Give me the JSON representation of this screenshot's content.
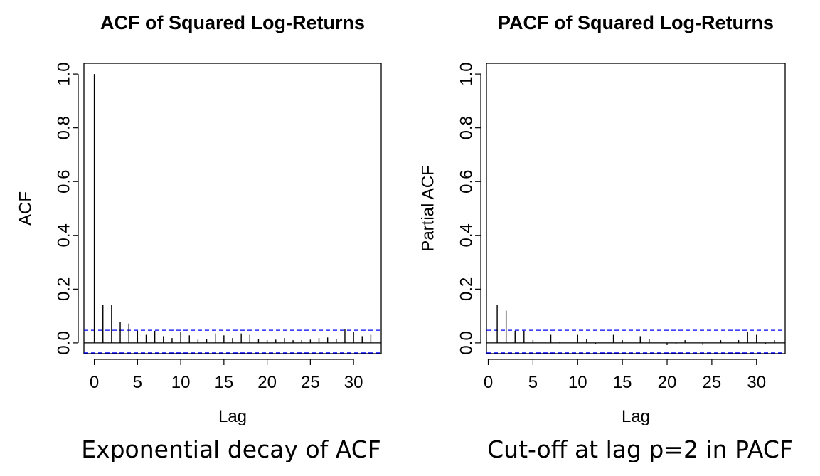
{
  "chart_data": [
    {
      "type": "bar",
      "title": "ACF of Squared Log-Returns",
      "xlabel": "Lag",
      "ylabel": "ACF",
      "xlim": [
        -1.2,
        33.2
      ],
      "ylim": [
        -0.04,
        1.04
      ],
      "x_ticks": [
        0,
        5,
        10,
        15,
        20,
        25,
        30
      ],
      "y_ticks": [
        "0.0",
        "0.2",
        "0.4",
        "0.6",
        "0.8",
        "1.0"
      ],
      "confidence_band": [
        0.047,
        -0.037
      ],
      "band_color": "#0000ff",
      "lags": [
        0,
        1,
        2,
        3,
        4,
        5,
        6,
        7,
        8,
        9,
        10,
        11,
        12,
        13,
        14,
        15,
        16,
        17,
        18,
        19,
        20,
        21,
        22,
        23,
        24,
        25,
        26,
        27,
        28,
        29,
        30,
        31,
        32
      ],
      "values": [
        1.0,
        0.14,
        0.14,
        0.078,
        0.072,
        0.045,
        0.03,
        0.045,
        0.025,
        0.018,
        0.04,
        0.028,
        0.012,
        0.015,
        0.035,
        0.028,
        0.018,
        0.035,
        0.03,
        0.015,
        0.01,
        0.012,
        0.018,
        0.01,
        0.01,
        0.012,
        0.018,
        0.02,
        0.015,
        0.05,
        0.04,
        0.025,
        0.03
      ]
    },
    {
      "type": "bar",
      "title": "PACF of Squared Log-Returns",
      "xlabel": "Lag",
      "ylabel": "Partial ACF",
      "xlim": [
        -0.2,
        33.2
      ],
      "ylim": [
        -0.04,
        1.04
      ],
      "x_ticks": [
        0,
        5,
        10,
        15,
        20,
        25,
        30
      ],
      "y_ticks": [
        "0.0",
        "0.2",
        "0.4",
        "0.6",
        "0.8",
        "1.0"
      ],
      "confidence_band": [
        0.047,
        -0.037
      ],
      "band_color": "#0000ff",
      "lags": [
        1,
        2,
        3,
        4,
        5,
        6,
        7,
        8,
        9,
        10,
        11,
        12,
        13,
        14,
        15,
        16,
        17,
        18,
        19,
        20,
        21,
        22,
        23,
        24,
        25,
        26,
        27,
        28,
        29,
        30,
        31,
        32
      ],
      "values": [
        0.14,
        0.12,
        0.045,
        0.045,
        0.01,
        0.0,
        0.03,
        0.005,
        0.0,
        0.03,
        0.015,
        -0.005,
        0.0,
        0.03,
        0.01,
        0.0,
        0.025,
        0.015,
        0.0,
        -0.008,
        -0.005,
        0.01,
        0.0,
        -0.008,
        0.0,
        0.01,
        0.0,
        0.01,
        0.04,
        0.03,
        -0.005,
        0.01
      ]
    }
  ],
  "captions": {
    "left": "Exponential decay of ACF",
    "right": "Cut-off at lag p=2 in PACF"
  }
}
